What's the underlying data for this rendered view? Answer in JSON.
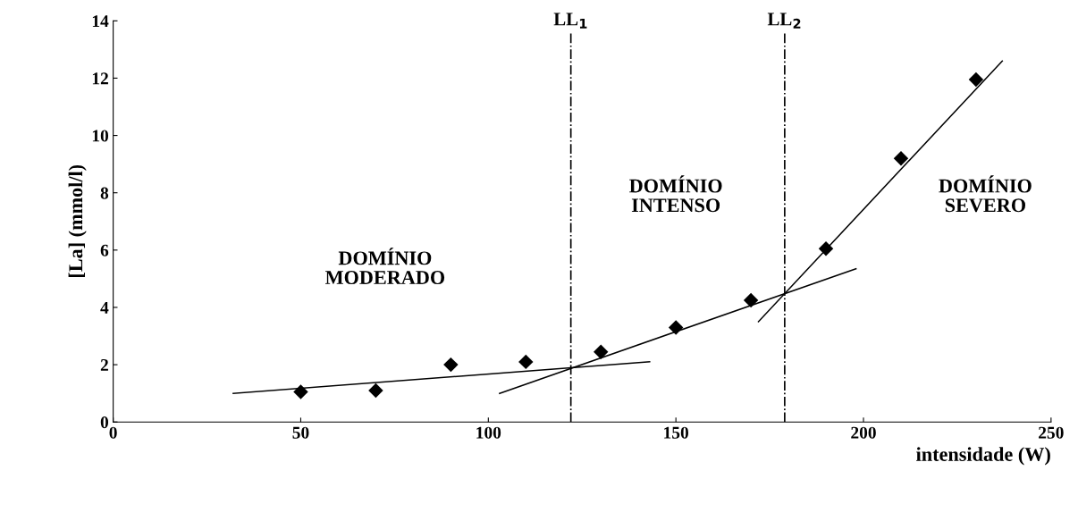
{
  "chart_data": {
    "type": "scatter",
    "xlabel": "intensidade (W)",
    "ylabel": "[La] (mmol/l)",
    "xlim": [
      0,
      250
    ],
    "xticks": [
      0,
      50,
      100,
      150,
      200,
      250
    ],
    "ylim": [
      0,
      14
    ],
    "yticks": [
      0,
      2,
      4,
      6,
      8,
      10,
      12,
      14
    ],
    "grid": false,
    "legend": false,
    "series": [
      {
        "marker": "diamond",
        "color": "#000000",
        "x": [
          50,
          70,
          90,
          110,
          130,
          150,
          170,
          190,
          210,
          230
        ],
        "values": [
          1.05,
          1.1,
          2.0,
          2.1,
          2.45,
          3.3,
          4.25,
          6.05,
          9.2,
          11.95
        ]
      },
      {
        "type": "line",
        "color": "#000000",
        "x": [
          32,
          143
        ],
        "values": [
          1.0,
          2.1
        ]
      },
      {
        "type": "line",
        "color": "#000000",
        "x": [
          103,
          198
        ],
        "values": [
          1.0,
          5.35
        ]
      },
      {
        "type": "line",
        "color": "#000000",
        "x": [
          172,
          237
        ],
        "values": [
          3.5,
          12.6
        ]
      }
    ],
    "ref_lines": [
      {
        "axis": "x",
        "value": 122,
        "label": "LL$_{1}$",
        "color": "#000000",
        "line_style": "dashdot"
      },
      {
        "axis": "x",
        "value": 179,
        "label": "LL$_{2}$",
        "color": "#000000",
        "line_style": "dashdot"
      }
    ],
    "annotations": [
      "DOMÍNIO\nMODERADO",
      "DOMÍNIO\nINTENSO",
      "DOMÍNIO\nSEVERO"
    ]
  }
}
